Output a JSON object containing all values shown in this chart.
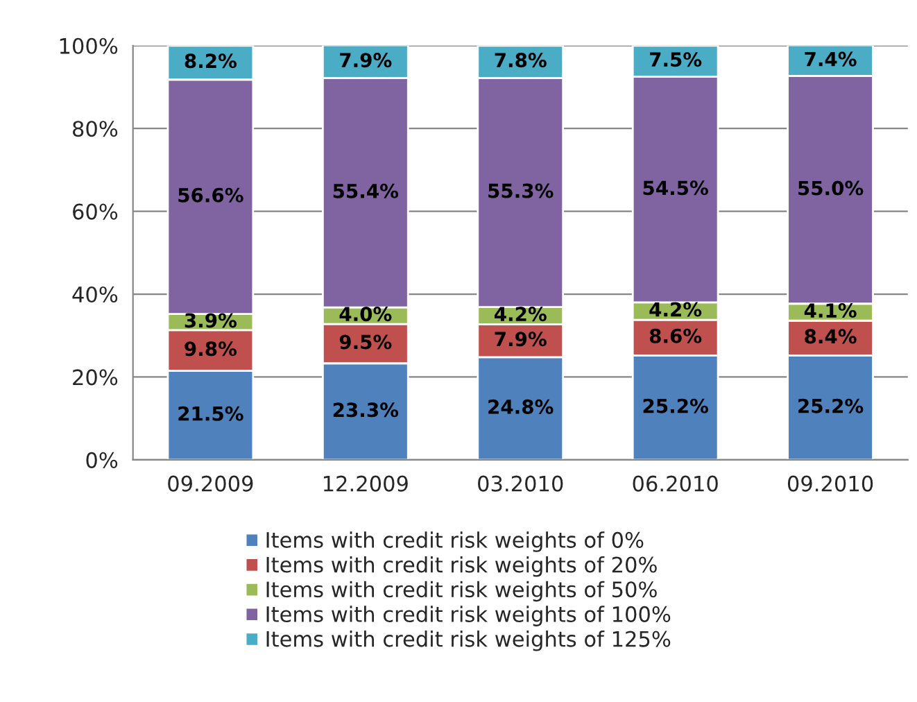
{
  "chart_data": {
    "type": "bar",
    "stacked": true,
    "categories": [
      "09.2009",
      "12.2009",
      "03.2010",
      "06.2010",
      "09.2010"
    ],
    "series": [
      {
        "name": "Items with credit risk weights of 0%",
        "color": "#4f81bd",
        "values": [
          21.5,
          23.3,
          24.8,
          25.2,
          25.2
        ],
        "value_labels": [
          "21.5%",
          "23.3%",
          "24.8%",
          "25.2%",
          "25.2%"
        ]
      },
      {
        "name": "Items with credit risk weights of 20%",
        "color": "#c0504d",
        "values": [
          9.8,
          9.5,
          7.9,
          8.6,
          8.4
        ],
        "value_labels": [
          "9.8%",
          "9.5%",
          "7.9%",
          "8.6%",
          "8.4%"
        ]
      },
      {
        "name": "Items with credit risk weights of 50%",
        "color": "#9bbb59",
        "values": [
          3.9,
          4.0,
          4.2,
          4.2,
          4.1
        ],
        "value_labels": [
          "3.9%",
          "4.0%",
          "4.2%",
          "4.2%",
          "4.1%"
        ]
      },
      {
        "name": "Items with credit risk weights of 100%",
        "color": "#8064a2",
        "values": [
          56.6,
          55.4,
          55.3,
          54.5,
          55.0
        ],
        "value_labels": [
          "56.6%",
          "55.4%",
          "55.3%",
          "54.5%",
          "55.0%"
        ]
      },
      {
        "name": "Items with credit risk weights of 125%",
        "color": "#4bacc6",
        "values": [
          8.2,
          7.9,
          7.8,
          7.5,
          7.4
        ],
        "value_labels": [
          "8.2%",
          "7.9%",
          "7.8%",
          "7.5%",
          "7.4%"
        ]
      }
    ],
    "ylim": [
      0,
      100
    ],
    "yticks": [
      {
        "value": 0,
        "label": "0%"
      },
      {
        "value": 20,
        "label": "20%"
      },
      {
        "value": 40,
        "label": "40%"
      },
      {
        "value": 60,
        "label": "60%"
      },
      {
        "value": 80,
        "label": "80%"
      },
      {
        "value": 100,
        "label": "100%"
      }
    ],
    "grid": "y",
    "legend": "bottom"
  }
}
